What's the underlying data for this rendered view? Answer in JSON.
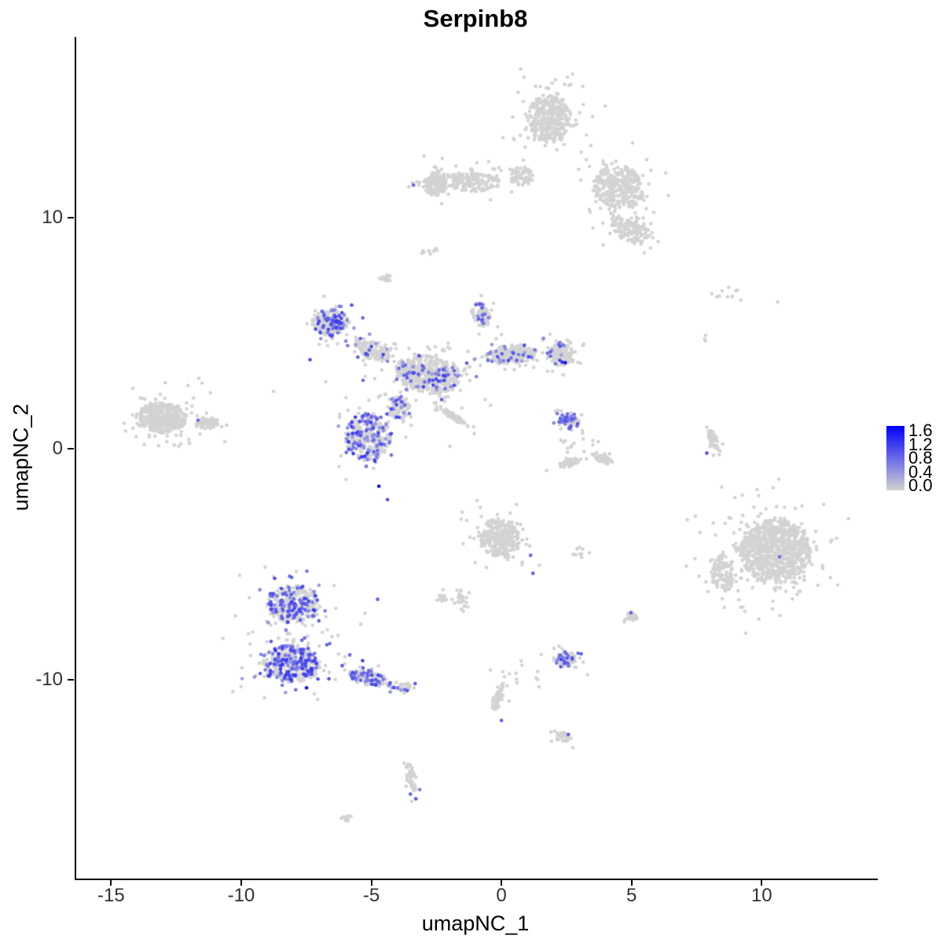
{
  "title": "Serpinb8",
  "axes": {
    "x": {
      "label": "umapNC_1",
      "ticks": [
        {
          "v": -15,
          "label": "-15"
        },
        {
          "v": -10,
          "label": "-10"
        },
        {
          "v": -5,
          "label": "-5"
        },
        {
          "v": 0,
          "label": "0"
        },
        {
          "v": 5,
          "label": "5"
        },
        {
          "v": 10,
          "label": "10"
        }
      ]
    },
    "y": {
      "label": "umapNC_2",
      "ticks": [
        {
          "v": 10,
          "label": "10"
        },
        {
          "v": 0,
          "label": "0"
        },
        {
          "v": -10,
          "label": "-10"
        }
      ]
    }
  },
  "legend": {
    "ticks": [
      {
        "v": 1.6,
        "label": "1.6"
      },
      {
        "v": 1.2,
        "label": "1.2"
      },
      {
        "v": 0.8,
        "label": "0.8"
      },
      {
        "v": 0.4,
        "label": "0.4"
      },
      {
        "v": 0.0,
        "label": "0.0"
      }
    ]
  },
  "chart_data": {
    "type": "scatter",
    "title": "Serpinb8",
    "xlabel": "umapNC_1",
    "ylabel": "umapNC_2",
    "xlim": [
      -16.4,
      14.4
    ],
    "ylim": [
      -18.6,
      17.8
    ],
    "grid": false,
    "legend_position": "right",
    "point_radius_px": 2.3,
    "color_scale": {
      "low": "#D3D3D3",
      "high": "#0000FF",
      "vmin": 0.0,
      "vmax": 1.6
    },
    "seed": 42,
    "clusters": [
      {
        "name": "top-blob",
        "cx": 1.78,
        "cy": 14.28,
        "rx": 1.5,
        "ry": 1.9,
        "rot": 0,
        "n": 380,
        "frac": 0,
        "vr": [
          0.35,
          1.15
        ]
      },
      {
        "name": "top-right-ext",
        "cx": 4.44,
        "cy": 11.29,
        "rx": 1.9,
        "ry": 1.7,
        "rot": -35,
        "n": 330,
        "frac": 0,
        "vr": [
          0.35,
          1.15
        ]
      },
      {
        "name": "top-left-arm",
        "cx": -1.15,
        "cy": 11.52,
        "rx": 2.0,
        "ry": 0.75,
        "rot": -3,
        "n": 170,
        "frac": 0,
        "vr": [
          0.35,
          1.15
        ]
      },
      {
        "name": "top-left-end",
        "cx": -2.6,
        "cy": 11.46,
        "rx": 0.8,
        "ry": 0.95,
        "rot": 0,
        "n": 150,
        "frac": 0,
        "vr": [
          0.35,
          1.15
        ],
        "extras": [
          {
            "x": -3.44,
            "y": 11.39,
            "v": 0.85
          }
        ]
      },
      {
        "name": "top-bridge",
        "cx": 0.76,
        "cy": 11.8,
        "rx": 0.9,
        "ry": 0.8,
        "rot": 0,
        "n": 70,
        "frac": 0,
        "vr": [
          0.35,
          1.15
        ]
      },
      {
        "name": "top-lower-lobe",
        "cx": 4.89,
        "cy": 9.52,
        "rx": 1.5,
        "ry": 1.0,
        "rot": -25,
        "n": 160,
        "frac": 0,
        "vr": [
          0.35,
          1.15
        ]
      },
      {
        "name": "top-stray",
        "cx": -2.69,
        "cy": 8.6,
        "rx": 0.35,
        "ry": 0.5,
        "rot": 0,
        "n": 7,
        "frac": 0,
        "vr": [
          0.35,
          1.15
        ]
      },
      {
        "name": "crab-upperleft-lobe",
        "cx": -6.65,
        "cy": 5.47,
        "rx": 1.3,
        "ry": 1.05,
        "rot": -10,
        "n": 210,
        "frac": 0.38,
        "vr": [
          0.45,
          1.15
        ]
      },
      {
        "name": "crab-upperleft-arm",
        "cx": -5.02,
        "cy": 4.25,
        "rx": 1.4,
        "ry": 0.7,
        "rot": -35,
        "n": 140,
        "frac": 0.12,
        "vr": [
          0.35,
          1.1
        ]
      },
      {
        "name": "crab-center",
        "cx": -2.9,
        "cy": 3.2,
        "rx": 2.3,
        "ry": 1.5,
        "rot": -15,
        "n": 470,
        "frac": 0.13,
        "vr": [
          0.35,
          1.1
        ]
      },
      {
        "name": "crab-right-arm",
        "cx": 0.3,
        "cy": 4.08,
        "rx": 1.8,
        "ry": 0.75,
        "rot": 8,
        "n": 240,
        "frac": 0.1,
        "vr": [
          0.35,
          1.1
        ]
      },
      {
        "name": "crab-right-blob",
        "cx": 2.18,
        "cy": 4.08,
        "rx": 0.95,
        "ry": 0.9,
        "rot": 0,
        "n": 170,
        "frac": 0.08,
        "vr": [
          0.35,
          1.0
        ],
        "extras": [
          {
            "x": 2.39,
            "y": 3.71,
            "v": 1.58
          },
          {
            "x": 2.27,
            "y": 3.74,
            "v": 1.25
          }
        ]
      },
      {
        "name": "crab-upper-spur",
        "cx": -0.85,
        "cy": 5.78,
        "rx": 0.6,
        "ry": 1.0,
        "rot": 20,
        "n": 90,
        "frac": 0.15,
        "vr": [
          0.4,
          1.0
        ]
      },
      {
        "name": "crab-lowerleft-lobe",
        "cx": -5.2,
        "cy": 0.51,
        "rx": 1.6,
        "ry": 1.9,
        "rot": 0,
        "n": 340,
        "frac": 0.3,
        "vr": [
          0.4,
          1.2
        ],
        "extras": [
          {
            "x": -4.77,
            "y": -1.63,
            "v": 1.5
          }
        ]
      },
      {
        "name": "crab-connector",
        "cx": -3.99,
        "cy": 1.73,
        "rx": 0.8,
        "ry": 1.0,
        "rot": 0,
        "n": 130,
        "frac": 0.25,
        "vr": [
          0.4,
          1.1
        ]
      },
      {
        "name": "crab-streak",
        "cx": -1.87,
        "cy": 1.36,
        "rx": 0.95,
        "ry": 0.22,
        "rot": -38,
        "n": 80,
        "frac": 0,
        "vr": [
          0.35,
          1.0
        ]
      },
      {
        "name": "crab-halo",
        "cx": -2.96,
        "cy": 3.47,
        "rx": 4.5,
        "ry": 2.8,
        "rot": 0,
        "n": 40,
        "frac": 0.05,
        "vr": [
          0.35,
          1.0
        ]
      },
      {
        "name": "left-main",
        "cx": -13.08,
        "cy": 1.33,
        "rx": 1.7,
        "ry": 1.2,
        "rot": -8,
        "n": 430,
        "frac": 0,
        "vr": [
          0.35,
          1.0
        ],
        "extras": [
          {
            "x": -11.72,
            "y": 1.22,
            "v": 0.75
          }
        ]
      },
      {
        "name": "left-tip",
        "cx": -11.36,
        "cy": 1.09,
        "rx": 0.8,
        "ry": 0.45,
        "rot": 0,
        "n": 70,
        "frac": 0,
        "vr": [
          0.35,
          1.0
        ]
      },
      {
        "name": "left-halo",
        "cx": -13.0,
        "cy": 1.4,
        "rx": 2.3,
        "ry": 1.8,
        "rot": 0,
        "n": 25,
        "frac": 0,
        "vr": [
          0.35,
          1.0
        ]
      },
      {
        "name": "bottomleft-upper",
        "cx": -8.04,
        "cy": -6.73,
        "rx": 1.9,
        "ry": 1.5,
        "rot": 0,
        "n": 330,
        "frac": 0.3,
        "vr": [
          0.4,
          1.15
        ]
      },
      {
        "name": "bottomleft-lower",
        "cx": -8.16,
        "cy": -9.31,
        "rx": 2.1,
        "ry": 1.5,
        "rot": 0,
        "n": 400,
        "frac": 0.4,
        "vr": [
          0.4,
          1.2
        ],
        "extras": [
          {
            "x": -7.55,
            "y": -10.35,
            "v": 1.5
          }
        ]
      },
      {
        "name": "bottomleft-tail",
        "cx": -5.14,
        "cy": -9.93,
        "rx": 1.4,
        "ry": 0.6,
        "rot": -12,
        "n": 140,
        "frac": 0.3,
        "vr": [
          0.4,
          1.1
        ]
      },
      {
        "name": "bottomleft-tail-end",
        "cx": -3.81,
        "cy": -10.37,
        "rx": 0.5,
        "ry": 0.35,
        "rot": -15,
        "n": 35,
        "frac": 0.25,
        "vr": [
          0.4,
          1.1
        ]
      },
      {
        "name": "bottomleft-halo",
        "cx": -7.9,
        "cy": -7.8,
        "rx": 3.2,
        "ry": 2.6,
        "rot": 0,
        "n": 40,
        "frac": 0.15,
        "vr": [
          0.4,
          1.0
        ]
      },
      {
        "name": "centerbottom-main",
        "cx": -0.12,
        "cy": -3.88,
        "rx": 1.35,
        "ry": 1.55,
        "rot": 15,
        "n": 300,
        "frac": 0,
        "vr": [
          0.35,
          1.0
        ],
        "extras": [
          {
            "x": 1.06,
            "y": -4.62,
            "v": 0.85
          },
          {
            "x": 1.15,
            "y": -5.4,
            "v": 0.9
          }
        ]
      },
      {
        "name": "centerbottom-tail",
        "cx": -1.6,
        "cy": -6.56,
        "rx": 0.5,
        "ry": 1.0,
        "rot": 25,
        "n": 30,
        "frac": 0,
        "vr": [
          0.35,
          1.0
        ]
      },
      {
        "name": "centerbottom-side",
        "cx": -2.36,
        "cy": -6.49,
        "rx": 0.45,
        "ry": 0.3,
        "rot": 0,
        "n": 18,
        "frac": 0,
        "vr": [
          0.35,
          1.0
        ]
      },
      {
        "name": "midright-top",
        "cx": 2.54,
        "cy": 1.19,
        "rx": 0.75,
        "ry": 0.65,
        "rot": 0,
        "n": 75,
        "frac": 0.3,
        "vr": [
          0.55,
          1.0
        ]
      },
      {
        "name": "midright-crescent-left",
        "cx": 2.54,
        "cy": -0.61,
        "rx": 0.75,
        "ry": 0.3,
        "rot": 20,
        "n": 50,
        "frac": 0,
        "vr": [
          0.35,
          1.0
        ]
      },
      {
        "name": "midright-crescent-right",
        "cx": 3.84,
        "cy": -0.44,
        "rx": 0.75,
        "ry": 0.3,
        "rot": -25,
        "n": 50,
        "frac": 0,
        "vr": [
          0.35,
          1.0
        ]
      },
      {
        "name": "midright-sparse",
        "cx": 2.9,
        "cy": 0.3,
        "rx": 1.5,
        "ry": 1.0,
        "rot": 0,
        "n": 15,
        "frac": 0,
        "vr": [
          0.35,
          1.0
        ]
      },
      {
        "name": "right-main",
        "cx": 10.48,
        "cy": -4.45,
        "rx": 2.5,
        "ry": 2.5,
        "rot": 0,
        "n": 870,
        "frac": 0,
        "vr": [
          0.35,
          1.0
        ],
        "extras": [
          {
            "x": 10.63,
            "y": -4.68,
            "v": 0.8
          }
        ]
      },
      {
        "name": "right-left-arm",
        "cx": 8.43,
        "cy": -5.37,
        "rx": 0.8,
        "ry": 1.5,
        "rot": 10,
        "n": 110,
        "frac": 0,
        "vr": [
          0.35,
          1.0
        ]
      },
      {
        "name": "right-halo",
        "cx": 10.3,
        "cy": -4.5,
        "rx": 3.3,
        "ry": 3.2,
        "rot": 0,
        "n": 50,
        "frac": 0,
        "vr": [
          0.35,
          1.0
        ]
      },
      {
        "name": "right-streak",
        "cx": 8.07,
        "cy": 0.41,
        "rx": 0.28,
        "ry": 0.95,
        "rot": 18,
        "n": 55,
        "frac": 0,
        "vr": [
          0.35,
          1.0
        ],
        "extras": [
          {
            "x": 7.83,
            "y": -0.2,
            "v": 1.0
          }
        ]
      },
      {
        "name": "topright-sparse",
        "cx": 8.52,
        "cy": 6.8,
        "rx": 1.7,
        "ry": 0.5,
        "rot": 0,
        "n": 11,
        "frac": 0,
        "vr": [
          0.35,
          1.0
        ]
      },
      {
        "name": "topright-pair",
        "cx": 7.7,
        "cy": 4.76,
        "rx": 0.2,
        "ry": 0.35,
        "rot": 0,
        "n": 3,
        "frac": 0,
        "vr": [
          0.35,
          1.0
        ]
      },
      {
        "name": "bottom-strand-a",
        "cx": -0.18,
        "cy": -10.74,
        "rx": 0.35,
        "ry": 1.2,
        "rot": -18,
        "n": 48,
        "frac": 0,
        "vr": [
          0.35,
          1.0
        ],
        "extras": [
          {
            "x": -0.06,
            "y": -11.76,
            "v": 0.9
          }
        ]
      },
      {
        "name": "bottom-blob-b",
        "cx": 2.36,
        "cy": -9.11,
        "rx": 0.8,
        "ry": 0.65,
        "rot": 0,
        "n": 95,
        "frac": 0.28,
        "vr": [
          0.55,
          1.1
        ]
      },
      {
        "name": "bottom-blob-c",
        "cx": 2.27,
        "cy": -12.48,
        "rx": 0.6,
        "ry": 0.4,
        "rot": 0,
        "n": 38,
        "frac": 0,
        "vr": [
          0.35,
          1.0
        ],
        "extras": [
          {
            "x": 2.51,
            "y": -12.37,
            "v": 0.9
          }
        ]
      },
      {
        "name": "bottom-strand-d",
        "cx": -3.53,
        "cy": -14.24,
        "rx": 0.35,
        "ry": 1.1,
        "rot": 12,
        "n": 45,
        "frac": 0,
        "vr": [
          0.35,
          1.0
        ],
        "extras": [
          {
            "x": -3.56,
            "y": -14.95,
            "v": 0.85
          },
          {
            "x": -3.35,
            "y": -15.15,
            "v": 1.0
          },
          {
            "x": -3.2,
            "y": -14.75,
            "v": 0.7
          }
        ]
      },
      {
        "name": "bottom-blob-e",
        "cx": -5.98,
        "cy": -15.98,
        "rx": 0.35,
        "ry": 0.25,
        "rot": 0,
        "n": 13,
        "frac": 0,
        "vr": [
          0.35,
          1.0
        ]
      },
      {
        "name": "bottom-blob-f",
        "cx": 4.95,
        "cy": -7.27,
        "rx": 0.4,
        "ry": 0.35,
        "rot": 0,
        "n": 26,
        "frac": 0,
        "vr": [
          0.35,
          1.0
        ],
        "extras": [
          {
            "x": 4.92,
            "y": -7.1,
            "v": 0.85
          }
        ]
      },
      {
        "name": "mid-sparse",
        "cx": 3.08,
        "cy": -4.52,
        "rx": 0.8,
        "ry": 0.5,
        "rot": 0,
        "n": 9,
        "frac": 0,
        "vr": [
          0.35,
          1.0
        ]
      },
      {
        "name": "above-crab-blob",
        "cx": -4.47,
        "cy": 7.38,
        "rx": 0.35,
        "ry": 0.3,
        "rot": 0,
        "n": 13,
        "frac": 0,
        "vr": [
          0.35,
          1.0
        ]
      },
      {
        "name": "above-crab-pair",
        "cx": -3.08,
        "cy": 8.5,
        "rx": 0.15,
        "ry": 0.2,
        "rot": 0,
        "n": 4,
        "frac": 0,
        "vr": [
          0.35,
          1.0
        ]
      },
      {
        "name": "scattered-bottom",
        "cx": 0.36,
        "cy": -10.1,
        "rx": 2.5,
        "ry": 1.5,
        "rot": 0,
        "n": 14,
        "frac": 0,
        "vr": [
          0.35,
          1.0
        ]
      }
    ]
  }
}
